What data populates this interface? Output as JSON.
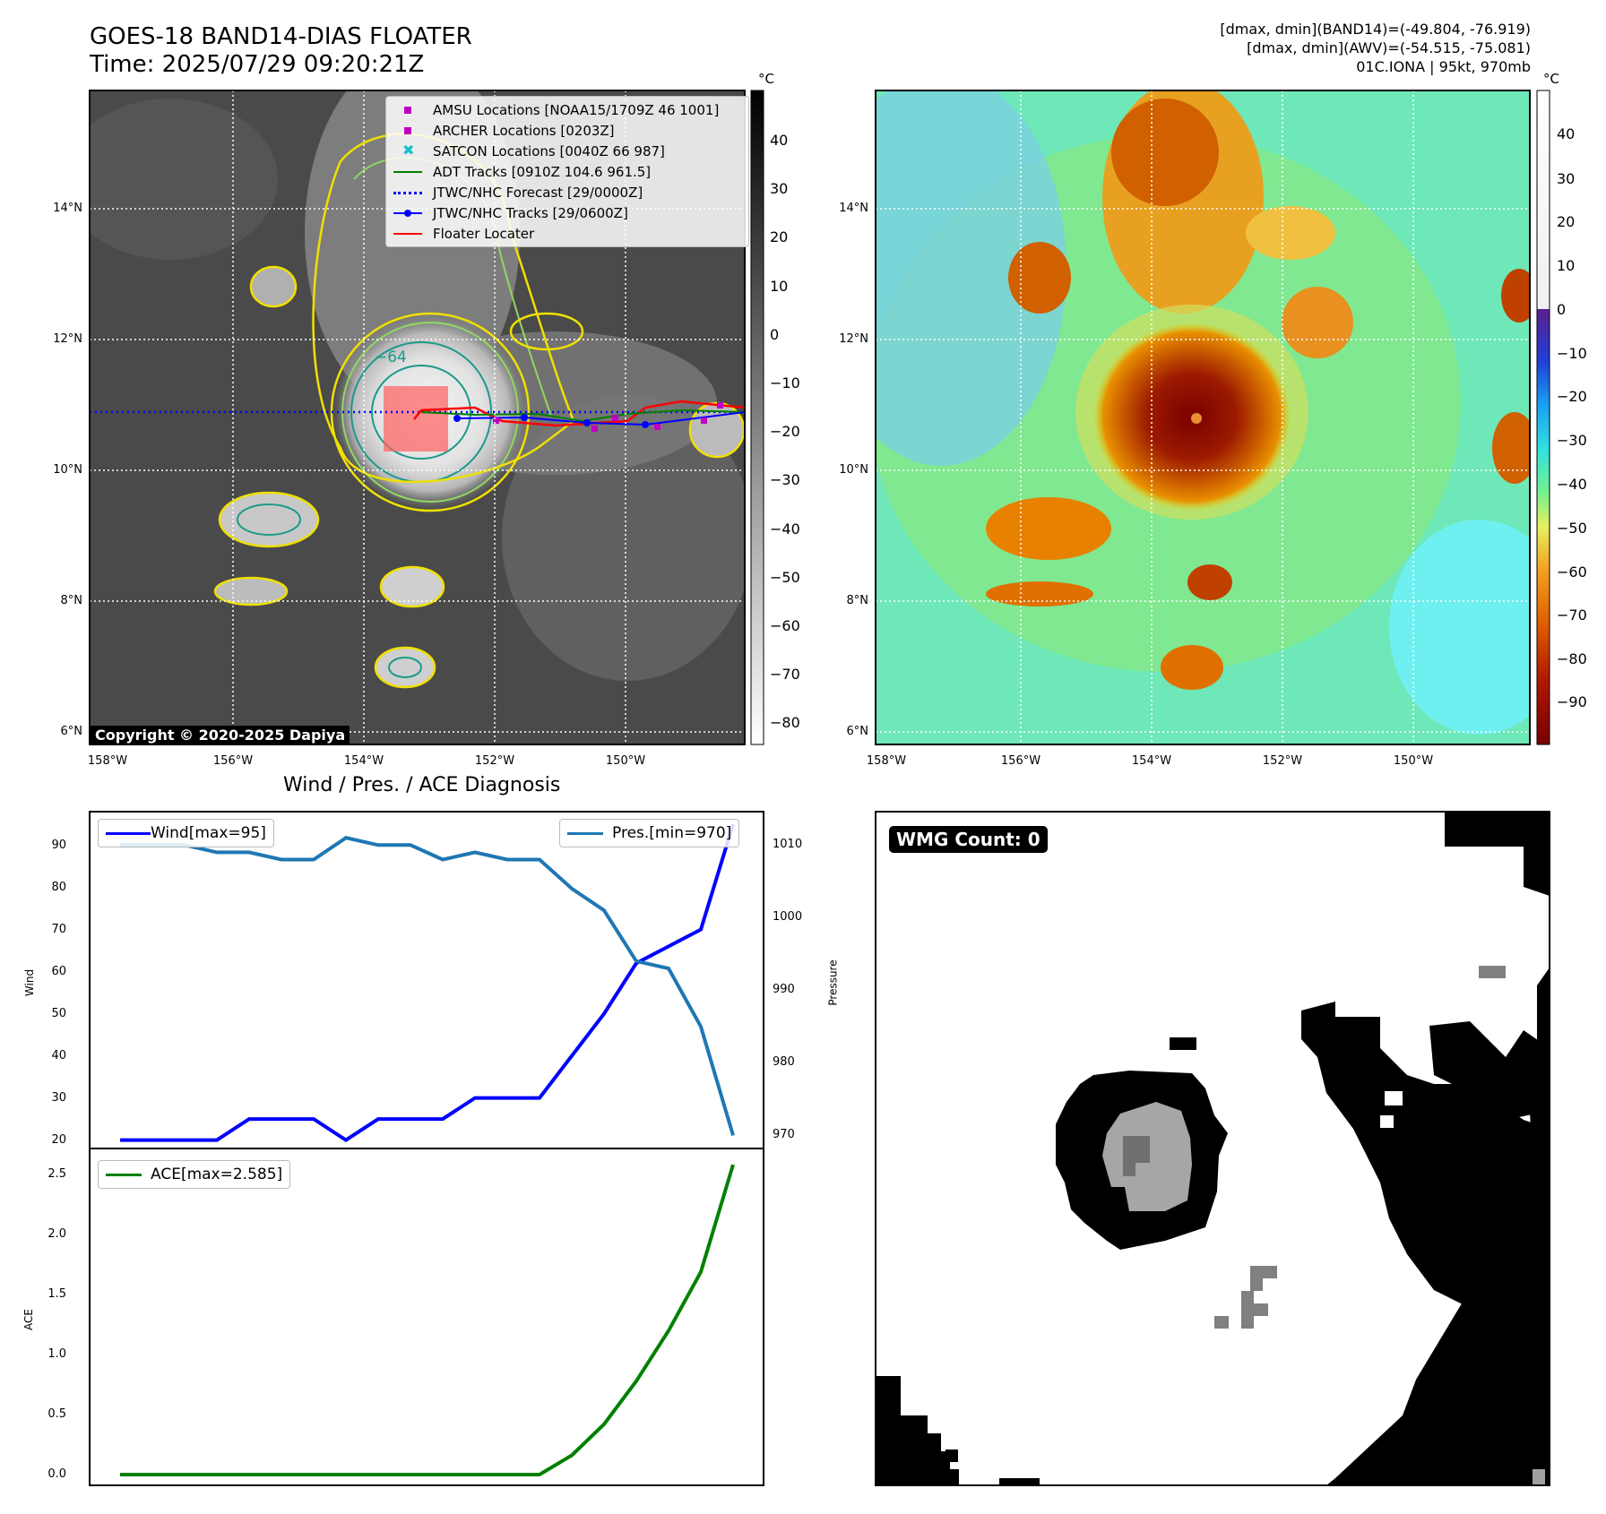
{
  "header": {
    "title": "GOES-18 BAND14-DIAS FLOATER",
    "time": "Time: 2025/07/29 09:20:21Z",
    "info_line1": "[dmax, dmin](BAND14)=(-49.804, -76.919)",
    "info_line2": "[dmax, dmin](AWV)=(-54.515, -75.081)",
    "info_line3": "01C.IONA | 95kt, 970mb"
  },
  "maps": {
    "lon_labels": [
      "158°W",
      "156°W",
      "154°W",
      "152°W",
      "150°W"
    ],
    "lat_labels": [
      "14°N",
      "12°N",
      "10°N",
      "8°N",
      "6°N"
    ],
    "contour_label": "−64",
    "unit": "°C",
    "ir_colorbar_ticks": [
      "40",
      "30",
      "20",
      "10",
      "0",
      "−10",
      "−20",
      "−30",
      "−40",
      "−50",
      "−60",
      "−70",
      "−80"
    ],
    "awv_colorbar_ticks": [
      "40",
      "30",
      "20",
      "10",
      "0",
      "−10",
      "−20",
      "−30",
      "−40",
      "−50",
      "−60",
      "−70",
      "−80",
      "−90"
    ],
    "copyright": "Copyright © 2020-2025 Dapiya",
    "legend": [
      {
        "label": "AMSU Locations [NOAA15/1709Z 46 1001]",
        "color": "#c000c0",
        "kind": "square"
      },
      {
        "label": "ARCHER Locations [0203Z]",
        "color": "#c000c0",
        "kind": "square"
      },
      {
        "label": "SATCON Locations [0040Z 66 987]",
        "color": "#17becf",
        "kind": "x"
      },
      {
        "label": "ADT Tracks [0910Z 104.6 961.5]",
        "color": "#008000",
        "kind": "line"
      },
      {
        "label": "JTWC/NHC Forecast [29/0000Z]",
        "color": "#0000ff",
        "kind": "dotted"
      },
      {
        "label": "JTWC/NHC Tracks [29/0600Z]",
        "color": "#0000ff",
        "kind": "line-dot"
      },
      {
        "label": "Floater Locater",
        "color": "#ff0000",
        "kind": "line"
      }
    ]
  },
  "diagnosis": {
    "title": "Wind / Pres. / ACE Diagnosis",
    "wind_legend": "Wind[max=95]",
    "pres_legend": "Pres.[min=970]",
    "ace_legend": "ACE[max=2.585]",
    "wind_axis_label": "Wind",
    "pres_axis_label": "Pressure",
    "ace_axis_label": "ACE",
    "wind_color": "#0000ff",
    "pres_color": "#1f77b4",
    "ace_color": "#008000"
  },
  "wmg": {
    "label": "WMG Count: 0"
  },
  "chart_data": [
    {
      "type": "line",
      "name": "wind",
      "x": [
        0,
        1,
        2,
        3,
        4,
        5,
        6,
        7,
        8,
        9,
        10,
        11,
        12,
        13,
        14,
        15,
        16,
        17,
        18,
        19
      ],
      "values": [
        20,
        20,
        20,
        20,
        25,
        25,
        25,
        20,
        25,
        25,
        25,
        30,
        30,
        30,
        40,
        50,
        62,
        66,
        70,
        95
      ],
      "ylim": [
        18,
        98
      ],
      "yticks": [
        20,
        30,
        40,
        50,
        60,
        70,
        80,
        90
      ]
    },
    {
      "type": "line",
      "name": "pressure",
      "x": [
        0,
        1,
        2,
        3,
        4,
        5,
        6,
        7,
        8,
        9,
        10,
        11,
        12,
        13,
        14,
        15,
        16,
        17,
        18,
        19
      ],
      "values": [
        1010,
        1010,
        1010,
        1009,
        1009,
        1008,
        1008,
        1011,
        1010,
        1010,
        1008,
        1009,
        1008,
        1008,
        1004,
        1001,
        994,
        993,
        985,
        970
      ],
      "ylim": [
        968.2,
        1014.6
      ],
      "yticks": [
        970,
        980,
        990,
        1000,
        1010
      ]
    },
    {
      "type": "line",
      "name": "ace",
      "x": [
        0,
        1,
        2,
        3,
        4,
        5,
        6,
        7,
        8,
        9,
        10,
        11,
        12,
        13,
        14,
        15,
        16,
        17,
        18,
        19
      ],
      "values": [
        0,
        0,
        0,
        0,
        0,
        0,
        0,
        0,
        0,
        0,
        0,
        0,
        0,
        0,
        0.16,
        0.42,
        0.78,
        1.2,
        1.69,
        2.585
      ],
      "ylim": [
        -0.09,
        2.72
      ],
      "yticks": [
        "0.0",
        "0.5",
        "1.0",
        "1.5",
        "2.0",
        "2.5"
      ]
    }
  ]
}
